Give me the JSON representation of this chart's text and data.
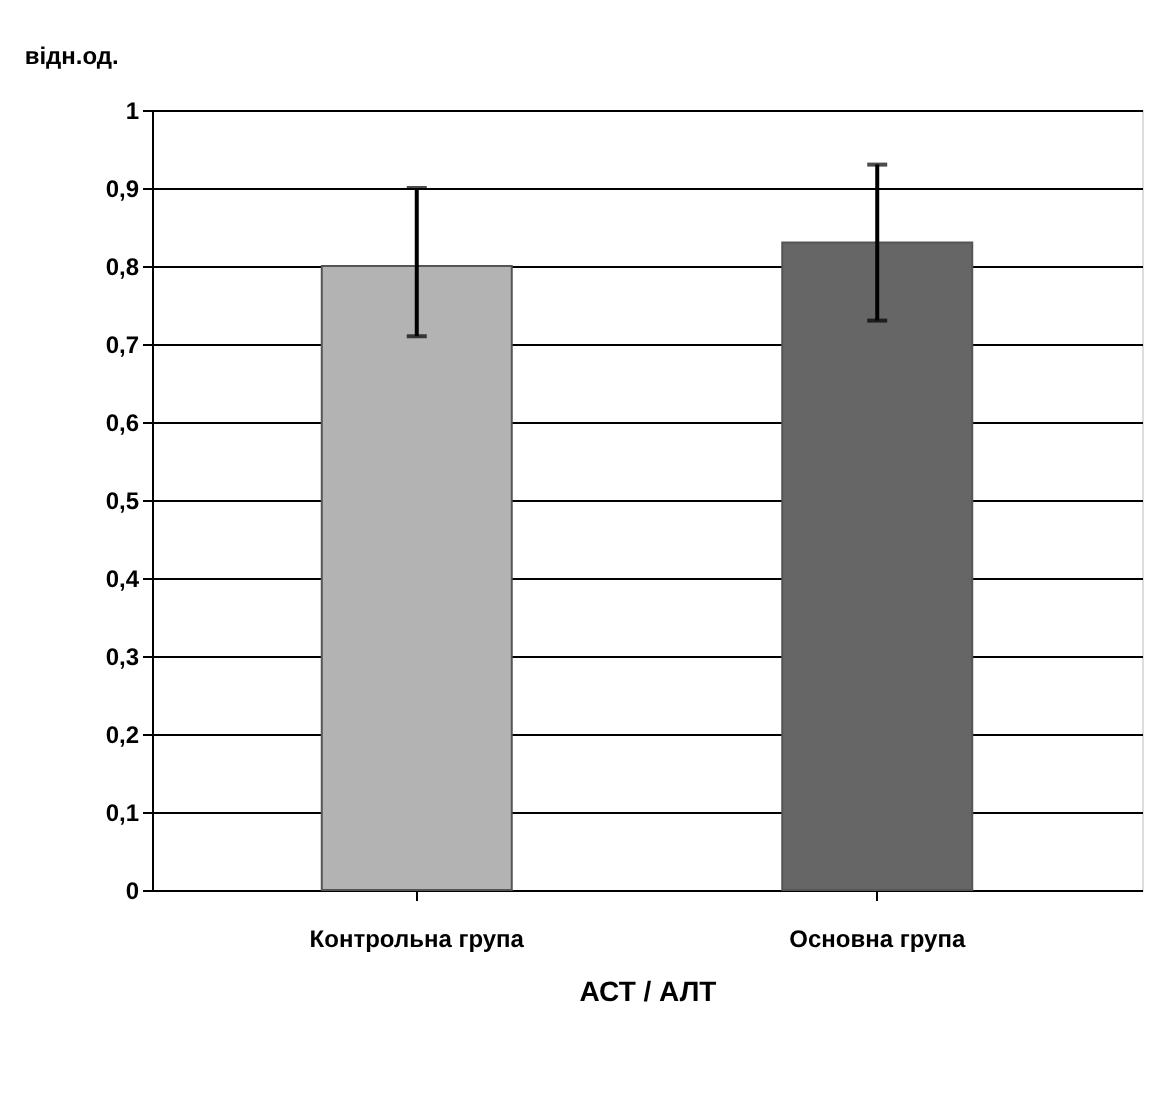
{
  "chart_data": {
    "type": "bar",
    "categories": [
      "Контрольна група",
      "Основна група"
    ],
    "values": [
      0.8,
      0.83
    ],
    "colors": [
      "#b3b3b3",
      "#666666"
    ],
    "errors": [
      [
        0.71,
        0.9
      ],
      [
        0.73,
        0.93
      ]
    ],
    "ylabel": "відн.од.",
    "xlabel": "АСТ / АЛТ",
    "ylim": [
      0,
      1
    ],
    "yticks": [
      0,
      {
        "value": 0.1,
        "label": "0,1"
      },
      {
        "value": 0.2,
        "label": "0,2"
      },
      {
        "value": 0.3,
        "label": "0,3"
      },
      {
        "value": 0.4,
        "label": "0,4"
      },
      {
        "value": 0.5,
        "label": "0,5"
      },
      {
        "value": 0.6,
        "label": "0,6"
      },
      {
        "value": 0.7,
        "label": "0,7"
      },
      {
        "value": 0.8,
        "label": "0,8"
      },
      {
        "value": 0.9,
        "label": "0,9"
      },
      1
    ],
    "grid": "y"
  }
}
